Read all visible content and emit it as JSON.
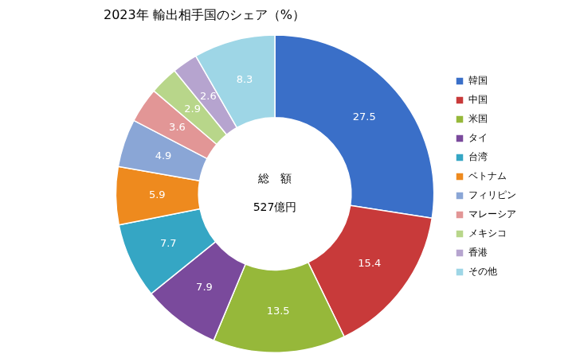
{
  "chart_data": {
    "type": "doughnut",
    "title": "2023年 輸出相手国のシェア（%）",
    "annotations": [
      "総　額",
      "527億円"
    ],
    "categories": [
      "韓国",
      "中国",
      "米国",
      "タイ",
      "台湾",
      "ベトナム",
      "フィリピン",
      "マレーシア",
      "メキシコ",
      "香港",
      "その他"
    ],
    "values": [
      27.5,
      15.4,
      13.5,
      7.9,
      7.7,
      5.9,
      4.9,
      3.6,
      2.9,
      2.6,
      8.3
    ],
    "colors": [
      "#3a6fc8",
      "#c83a3a",
      "#96b83a",
      "#7a4a9c",
      "#35a6c4",
      "#ee8a1e",
      "#8aa6d6",
      "#e29696",
      "#b8d68a",
      "#b6a4cf",
      "#9ed6e6"
    ],
    "legend": "right",
    "data_labels": true
  }
}
